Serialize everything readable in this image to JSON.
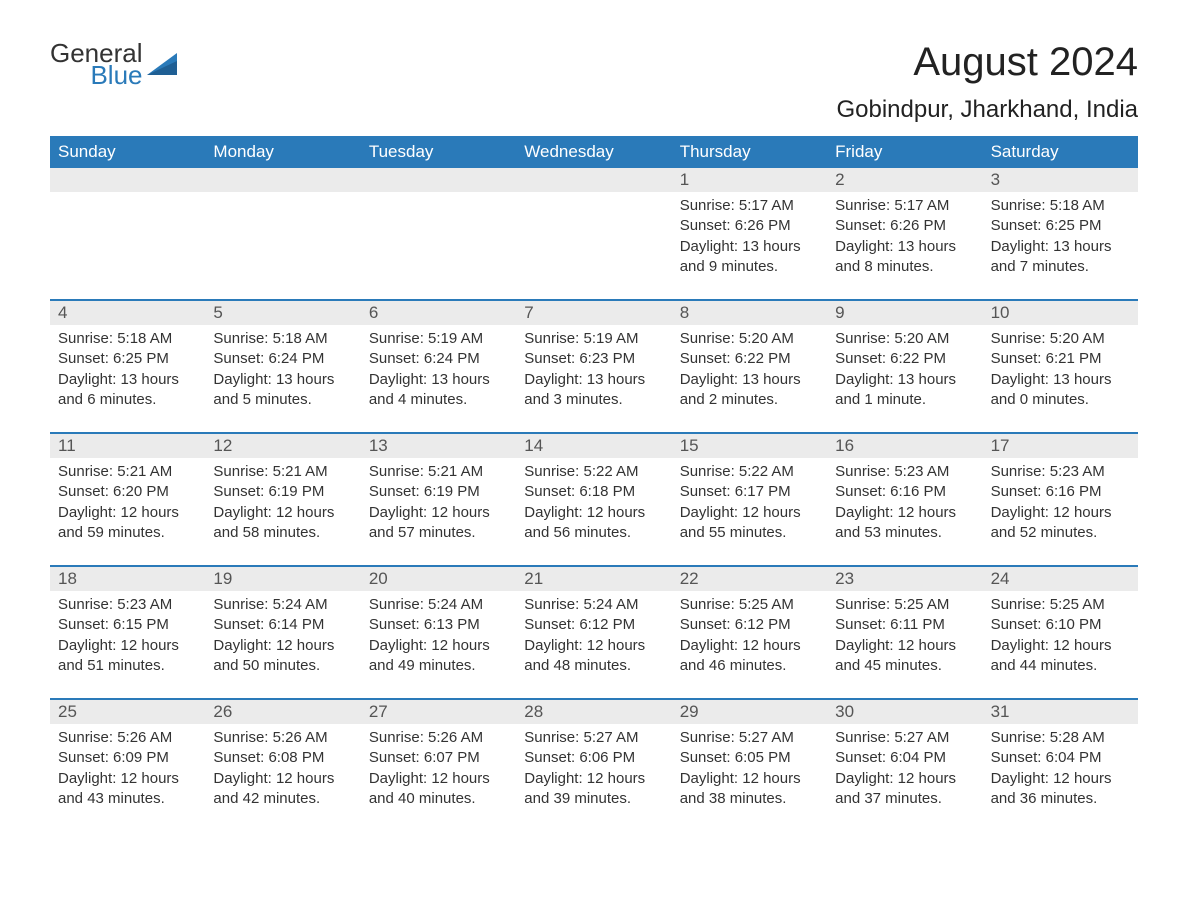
{
  "logo": {
    "general": "General",
    "blue": "Blue"
  },
  "title": "August 2024",
  "location": "Gobindpur, Jharkhand, India",
  "colors": {
    "header_bg": "#2a7ab9",
    "header_text": "#ffffff",
    "daynum_bg": "#ebebeb",
    "row_border": "#2a7ab9",
    "text": "#333333",
    "title_text": "#222222"
  },
  "weekdays": [
    "Sunday",
    "Monday",
    "Tuesday",
    "Wednesday",
    "Thursday",
    "Friday",
    "Saturday"
  ],
  "weeks": [
    [
      null,
      null,
      null,
      null,
      {
        "n": "1",
        "sunrise": "Sunrise: 5:17 AM",
        "sunset": "Sunset: 6:26 PM",
        "daylight": "Daylight: 13 hours and 9 minutes."
      },
      {
        "n": "2",
        "sunrise": "Sunrise: 5:17 AM",
        "sunset": "Sunset: 6:26 PM",
        "daylight": "Daylight: 13 hours and 8 minutes."
      },
      {
        "n": "3",
        "sunrise": "Sunrise: 5:18 AM",
        "sunset": "Sunset: 6:25 PM",
        "daylight": "Daylight: 13 hours and 7 minutes."
      }
    ],
    [
      {
        "n": "4",
        "sunrise": "Sunrise: 5:18 AM",
        "sunset": "Sunset: 6:25 PM",
        "daylight": "Daylight: 13 hours and 6 minutes."
      },
      {
        "n": "5",
        "sunrise": "Sunrise: 5:18 AM",
        "sunset": "Sunset: 6:24 PM",
        "daylight": "Daylight: 13 hours and 5 minutes."
      },
      {
        "n": "6",
        "sunrise": "Sunrise: 5:19 AM",
        "sunset": "Sunset: 6:24 PM",
        "daylight": "Daylight: 13 hours and 4 minutes."
      },
      {
        "n": "7",
        "sunrise": "Sunrise: 5:19 AM",
        "sunset": "Sunset: 6:23 PM",
        "daylight": "Daylight: 13 hours and 3 minutes."
      },
      {
        "n": "8",
        "sunrise": "Sunrise: 5:20 AM",
        "sunset": "Sunset: 6:22 PM",
        "daylight": "Daylight: 13 hours and 2 minutes."
      },
      {
        "n": "9",
        "sunrise": "Sunrise: 5:20 AM",
        "sunset": "Sunset: 6:22 PM",
        "daylight": "Daylight: 13 hours and 1 minute."
      },
      {
        "n": "10",
        "sunrise": "Sunrise: 5:20 AM",
        "sunset": "Sunset: 6:21 PM",
        "daylight": "Daylight: 13 hours and 0 minutes."
      }
    ],
    [
      {
        "n": "11",
        "sunrise": "Sunrise: 5:21 AM",
        "sunset": "Sunset: 6:20 PM",
        "daylight": "Daylight: 12 hours and 59 minutes."
      },
      {
        "n": "12",
        "sunrise": "Sunrise: 5:21 AM",
        "sunset": "Sunset: 6:19 PM",
        "daylight": "Daylight: 12 hours and 58 minutes."
      },
      {
        "n": "13",
        "sunrise": "Sunrise: 5:21 AM",
        "sunset": "Sunset: 6:19 PM",
        "daylight": "Daylight: 12 hours and 57 minutes."
      },
      {
        "n": "14",
        "sunrise": "Sunrise: 5:22 AM",
        "sunset": "Sunset: 6:18 PM",
        "daylight": "Daylight: 12 hours and 56 minutes."
      },
      {
        "n": "15",
        "sunrise": "Sunrise: 5:22 AM",
        "sunset": "Sunset: 6:17 PM",
        "daylight": "Daylight: 12 hours and 55 minutes."
      },
      {
        "n": "16",
        "sunrise": "Sunrise: 5:23 AM",
        "sunset": "Sunset: 6:16 PM",
        "daylight": "Daylight: 12 hours and 53 minutes."
      },
      {
        "n": "17",
        "sunrise": "Sunrise: 5:23 AM",
        "sunset": "Sunset: 6:16 PM",
        "daylight": "Daylight: 12 hours and 52 minutes."
      }
    ],
    [
      {
        "n": "18",
        "sunrise": "Sunrise: 5:23 AM",
        "sunset": "Sunset: 6:15 PM",
        "daylight": "Daylight: 12 hours and 51 minutes."
      },
      {
        "n": "19",
        "sunrise": "Sunrise: 5:24 AM",
        "sunset": "Sunset: 6:14 PM",
        "daylight": "Daylight: 12 hours and 50 minutes."
      },
      {
        "n": "20",
        "sunrise": "Sunrise: 5:24 AM",
        "sunset": "Sunset: 6:13 PM",
        "daylight": "Daylight: 12 hours and 49 minutes."
      },
      {
        "n": "21",
        "sunrise": "Sunrise: 5:24 AM",
        "sunset": "Sunset: 6:12 PM",
        "daylight": "Daylight: 12 hours and 48 minutes."
      },
      {
        "n": "22",
        "sunrise": "Sunrise: 5:25 AM",
        "sunset": "Sunset: 6:12 PM",
        "daylight": "Daylight: 12 hours and 46 minutes."
      },
      {
        "n": "23",
        "sunrise": "Sunrise: 5:25 AM",
        "sunset": "Sunset: 6:11 PM",
        "daylight": "Daylight: 12 hours and 45 minutes."
      },
      {
        "n": "24",
        "sunrise": "Sunrise: 5:25 AM",
        "sunset": "Sunset: 6:10 PM",
        "daylight": "Daylight: 12 hours and 44 minutes."
      }
    ],
    [
      {
        "n": "25",
        "sunrise": "Sunrise: 5:26 AM",
        "sunset": "Sunset: 6:09 PM",
        "daylight": "Daylight: 12 hours and 43 minutes."
      },
      {
        "n": "26",
        "sunrise": "Sunrise: 5:26 AM",
        "sunset": "Sunset: 6:08 PM",
        "daylight": "Daylight: 12 hours and 42 minutes."
      },
      {
        "n": "27",
        "sunrise": "Sunrise: 5:26 AM",
        "sunset": "Sunset: 6:07 PM",
        "daylight": "Daylight: 12 hours and 40 minutes."
      },
      {
        "n": "28",
        "sunrise": "Sunrise: 5:27 AM",
        "sunset": "Sunset: 6:06 PM",
        "daylight": "Daylight: 12 hours and 39 minutes."
      },
      {
        "n": "29",
        "sunrise": "Sunrise: 5:27 AM",
        "sunset": "Sunset: 6:05 PM",
        "daylight": "Daylight: 12 hours and 38 minutes."
      },
      {
        "n": "30",
        "sunrise": "Sunrise: 5:27 AM",
        "sunset": "Sunset: 6:04 PM",
        "daylight": "Daylight: 12 hours and 37 minutes."
      },
      {
        "n": "31",
        "sunrise": "Sunrise: 5:28 AM",
        "sunset": "Sunset: 6:04 PM",
        "daylight": "Daylight: 12 hours and 36 minutes."
      }
    ]
  ]
}
